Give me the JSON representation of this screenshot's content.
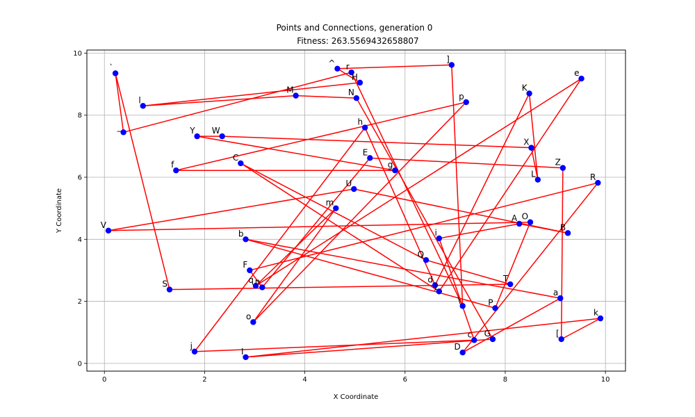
{
  "chart_data": {
    "type": "scatter",
    "title": "Points and Connections, generation 0",
    "subtitle": "Fitness: 263.5569432658807",
    "xlabel": "X Coordinate",
    "ylabel": "Y Coordinate",
    "xlim": [
      -0.35,
      10.4
    ],
    "ylim": [
      -0.25,
      10.1
    ],
    "xticks": [
      0,
      2,
      4,
      6,
      8,
      10
    ],
    "yticks": [
      0,
      2,
      4,
      6,
      8,
      10
    ],
    "grid": true,
    "point_color": "#0000ff",
    "line_color": "#ff0000",
    "points": [
      {
        "label": "`",
        "x": 0.22,
        "y": 9.35
      },
      {
        "label": "_",
        "x": 0.38,
        "y": 7.45
      },
      {
        "label": "r",
        "x": 4.93,
        "y": 9.38
      },
      {
        "label": "\\",
        "x": 7.15,
        "y": 1.85
      },
      {
        "label": "G",
        "x": 7.75,
        "y": 0.78
      },
      {
        "label": "N",
        "x": 5.03,
        "y": 8.55
      },
      {
        "label": "M",
        "x": 3.82,
        "y": 8.63
      },
      {
        "label": "l",
        "x": 0.77,
        "y": 8.3
      },
      {
        "label": "H",
        "x": 5.1,
        "y": 9.05
      },
      {
        "label": "]",
        "x": 6.93,
        "y": 9.62
      },
      {
        "label": "^",
        "x": 4.65,
        "y": 9.5
      },
      {
        "label": "I",
        "x": 2.82,
        "y": 0.2
      },
      {
        "label": "k",
        "x": 9.9,
        "y": 1.45
      },
      {
        "label": "F",
        "x": 2.9,
        "y": 3.0
      },
      {
        "label": "R",
        "x": 9.85,
        "y": 5.82
      },
      {
        "label": "[",
        "x": 9.12,
        "y": 0.78
      },
      {
        "label": "Z",
        "x": 9.15,
        "y": 6.3
      },
      {
        "label": "V",
        "x": 0.08,
        "y": 4.28
      },
      {
        "label": "U",
        "x": 4.98,
        "y": 5.62
      },
      {
        "label": "a",
        "x": 9.1,
        "y": 2.1
      },
      {
        "label": "b",
        "x": 2.82,
        "y": 4.0
      },
      {
        "label": "P",
        "x": 7.8,
        "y": 1.78
      },
      {
        "label": "O",
        "x": 8.5,
        "y": 4.55
      },
      {
        "label": "c",
        "x": 7.38,
        "y": 0.75
      },
      {
        "label": "j",
        "x": 1.8,
        "y": 0.38
      },
      {
        "label": "h",
        "x": 5.2,
        "y": 7.6
      },
      {
        "label": "D",
        "x": 7.15,
        "y": 0.35
      },
      {
        "label": "i",
        "x": 6.68,
        "y": 4.03
      },
      {
        "label": "g",
        "x": 5.8,
        "y": 6.22
      },
      {
        "label": "f",
        "x": 1.43,
        "y": 6.22
      },
      {
        "label": "K",
        "x": 8.48,
        "y": 8.7
      },
      {
        "label": "n",
        "x": 3.15,
        "y": 2.45
      },
      {
        "label": "A",
        "x": 8.28,
        "y": 4.5
      },
      {
        "label": "B",
        "x": 9.25,
        "y": 4.2
      },
      {
        "label": "C",
        "x": 2.72,
        "y": 6.45
      },
      {
        "label": "Y",
        "x": 1.85,
        "y": 7.32
      },
      {
        "label": "X",
        "x": 8.52,
        "y": 6.95
      },
      {
        "label": "L",
        "x": 8.65,
        "y": 5.92
      },
      {
        "label": "W",
        "x": 2.35,
        "y": 7.32
      },
      {
        "label": "e",
        "x": 9.52,
        "y": 9.18
      },
      {
        "label": "S",
        "x": 1.3,
        "y": 2.38
      },
      {
        "label": "T",
        "x": 8.1,
        "y": 2.55
      },
      {
        "label": "d",
        "x": 6.6,
        "y": 2.52
      },
      {
        "label": "p",
        "x": 7.22,
        "y": 8.42
      },
      {
        "label": "o",
        "x": 2.97,
        "y": 1.33
      },
      {
        "label": "m",
        "x": 4.62,
        "y": 5.0
      },
      {
        "label": "E",
        "x": 5.3,
        "y": 6.62
      },
      {
        "label": "q",
        "x": 3.02,
        "y": 2.5
      },
      {
        "label": "Q",
        "x": 6.42,
        "y": 3.33
      },
      {
        "label": "J",
        "x": 6.68,
        "y": 2.32
      }
    ],
    "path": [
      "`",
      "_",
      "r",
      "\\",
      "]",
      "^",
      "H",
      "l",
      "M",
      "N",
      "G",
      "I",
      "k",
      "[",
      "Z",
      "E",
      "n",
      "F",
      "R",
      "D",
      "a",
      "b",
      "P",
      "O",
      "V",
      "U",
      "B",
      "A",
      "i",
      "c",
      "j",
      "h",
      "d",
      "K",
      "L",
      "X",
      "W",
      "Y",
      "g",
      "f",
      "p",
      "o",
      "m",
      "q",
      "e",
      "J",
      "C",
      "Q",
      "T",
      "S",
      "`"
    ]
  }
}
